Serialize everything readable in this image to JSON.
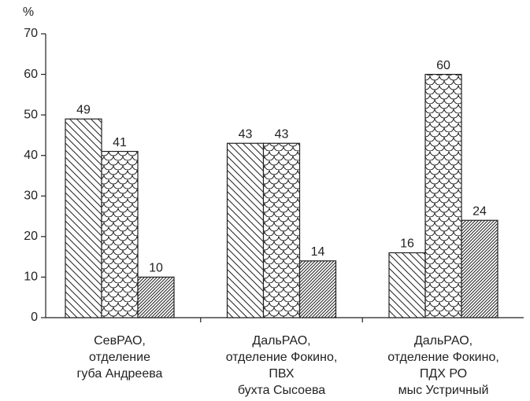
{
  "chart_data": {
    "type": "bar",
    "y_label": "%",
    "categories": [
      [
        "СевРАО,",
        "отделение",
        "губа Андреева"
      ],
      [
        "ДальРАО,",
        "отделение Фокино,",
        "ПВХ",
        "бухта Сысоева"
      ],
      [
        "ДальРАО,",
        "отделение Фокино,",
        "ПДХ РО",
        "мыс Устричный"
      ]
    ],
    "series": [
      {
        "pattern": "diagonal",
        "values": [
          49,
          43,
          16
        ]
      },
      {
        "pattern": "scales",
        "values": [
          41,
          43,
          60
        ]
      },
      {
        "pattern": "dense-diagonal",
        "values": [
          10,
          14,
          24
        ]
      }
    ],
    "ylim": [
      0,
      70
    ],
    "yticks": [
      0,
      10,
      20,
      30,
      40,
      50,
      60,
      70
    ]
  }
}
